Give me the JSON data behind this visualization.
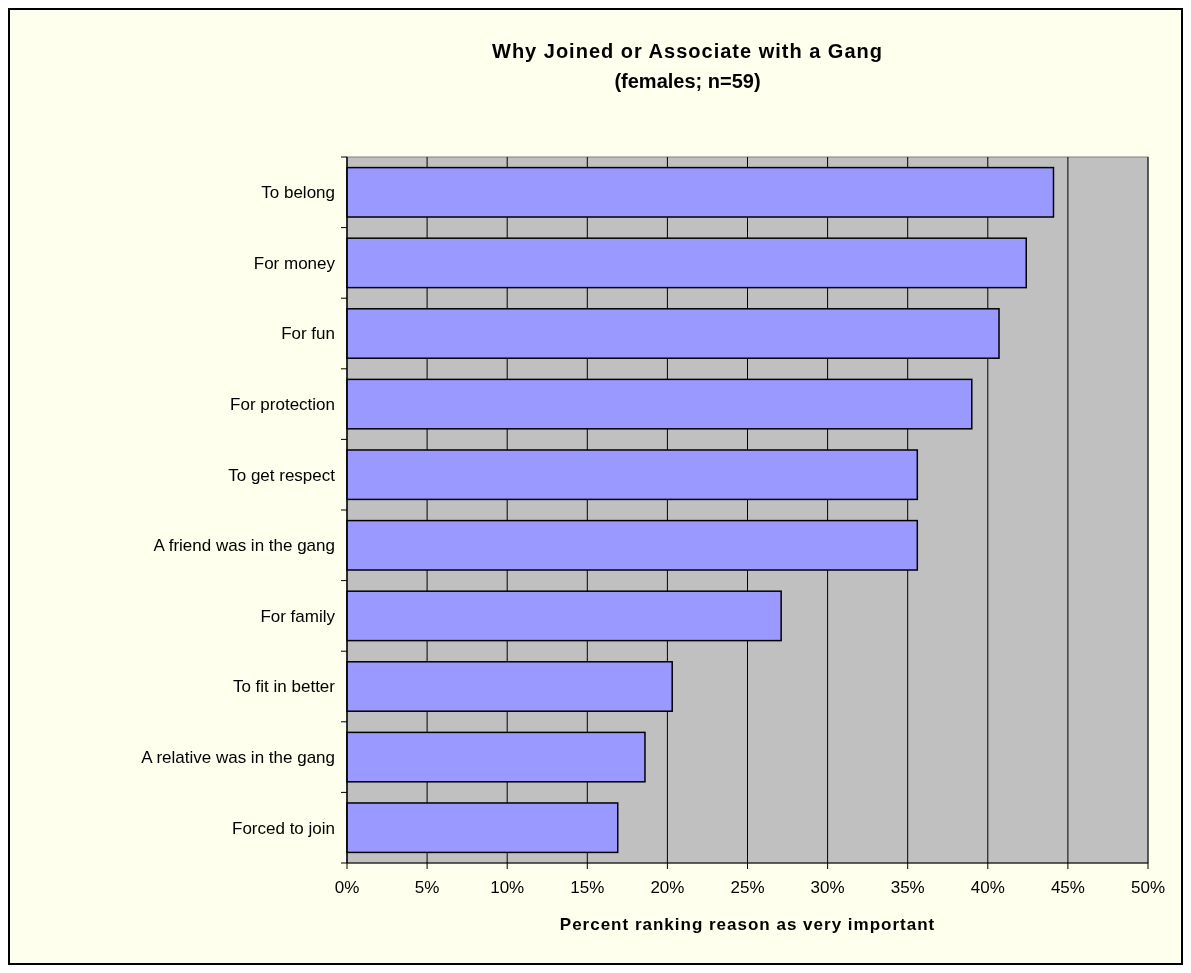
{
  "chart_data": {
    "type": "bar",
    "orientation": "horizontal",
    "title": "Why Joined or Associate with a Gang",
    "subtitle": "(females; n=59)",
    "xlabel": "Percent ranking reason as very important",
    "categories": [
      "To belong",
      "For money",
      "For fun",
      "For protection",
      "To get respect",
      "A friend was in the gang",
      "For family",
      "To fit in better",
      "A relative was in the gang",
      "Forced to join"
    ],
    "values": [
      44.1,
      42.4,
      40.7,
      39.0,
      35.6,
      35.6,
      27.1,
      20.3,
      18.6,
      16.9
    ],
    "color": "#9999ff",
    "xlim": [
      0,
      50
    ],
    "xticks": [
      {
        "value": 0,
        "label": "0%"
      },
      {
        "value": 5,
        "label": "5%"
      },
      {
        "value": 10,
        "label": "10%"
      },
      {
        "value": 15,
        "label": "15%"
      },
      {
        "value": 20,
        "label": "20%"
      },
      {
        "value": 25,
        "label": "25%"
      },
      {
        "value": 30,
        "label": "30%"
      },
      {
        "value": 35,
        "label": "35%"
      },
      {
        "value": 40,
        "label": "40%"
      },
      {
        "value": 45,
        "label": "45%"
      },
      {
        "value": 50,
        "label": "50%"
      }
    ],
    "grid": "x"
  }
}
